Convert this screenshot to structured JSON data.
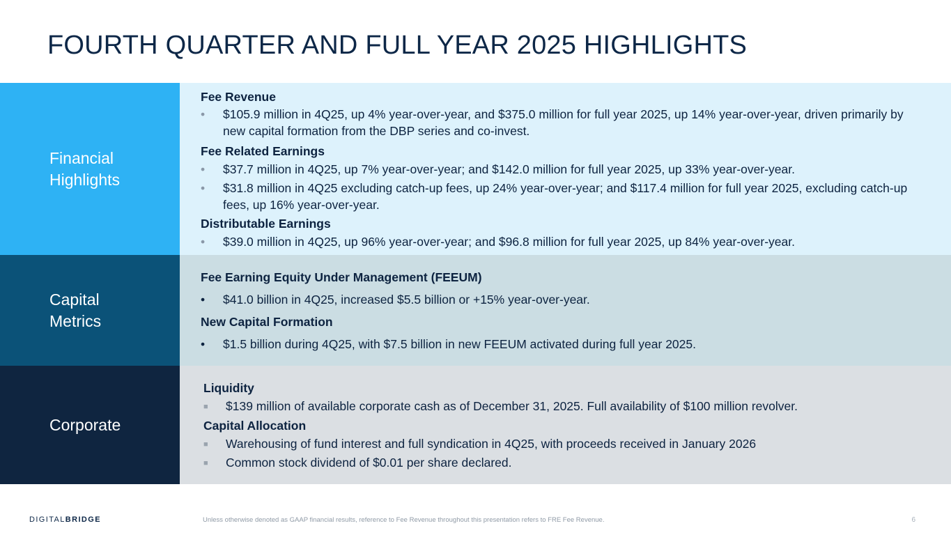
{
  "title": "FOURTH QUARTER AND FULL YEAR 2025 HIGHLIGHTS",
  "colors": {
    "financial_label": "#2eb2f4",
    "financial_content": "#ddf2fc",
    "capital_label": "#0b5278",
    "capital_content": "#cbdde3",
    "corporate_label": "#0f2540",
    "corporate_content": "#dbdfe3",
    "text": "#0d2340"
  },
  "sections": {
    "financial": {
      "label": "Financial Highlights",
      "fee_revenue": {
        "heading": "Fee Revenue",
        "bullets": [
          "$105.9 million in 4Q25, up 4% year-over-year, and $375.0 million for full year 2025, up 14% year-over-year, driven primarily by new capital formation from the DBP series and co-invest."
        ]
      },
      "fee_related_earnings": {
        "heading": "Fee Related Earnings",
        "bullets": [
          "$37.7 million in 4Q25, up 7% year-over-year; and $142.0 million for full year 2025, up 33% year-over-year.",
          "$31.8 million in 4Q25 excluding catch-up fees, up 24% year-over-year; and $117.4 million for full year 2025, excluding catch-up fees, up 16% year-over-year."
        ]
      },
      "distributable_earnings": {
        "heading": "Distributable Earnings",
        "bullets": [
          "$39.0 million in 4Q25, up 96% year-over-year; and $96.8 million for full year 2025, up 84% year-over-year."
        ]
      }
    },
    "capital": {
      "label": "Capital Metrics",
      "feeum": {
        "heading": "Fee Earning Equity Under Management (FEEUM)",
        "bullets": [
          "$41.0 billion in 4Q25, increased $5.5 billion or +15% year-over-year."
        ]
      },
      "new_capital": {
        "heading": "New Capital Formation",
        "bullets": [
          "$1.5 billion during 4Q25, with $7.5 billion in new FEEUM activated during full year 2025."
        ]
      }
    },
    "corporate": {
      "label": "Corporate",
      "liquidity": {
        "heading": "Liquidity",
        "bullets": [
          "$139 million of available corporate cash as of December 31, 2025. Full availability of $100 million revolver."
        ]
      },
      "capital_allocation": {
        "heading": "Capital Allocation",
        "bullets": [
          "Warehousing of fund interest and full syndication in 4Q25, with proceeds received in January 2026",
          "Common stock dividend of $0.01 per share declared."
        ]
      }
    }
  },
  "footer": {
    "logo_light": "DIGITAL",
    "logo_bold": "BRIDGE",
    "footnote": "Unless otherwise denoted as GAAP financial results, reference to Fee Revenue throughout this presentation refers to FRE Fee Revenue.",
    "page_number": "6"
  }
}
